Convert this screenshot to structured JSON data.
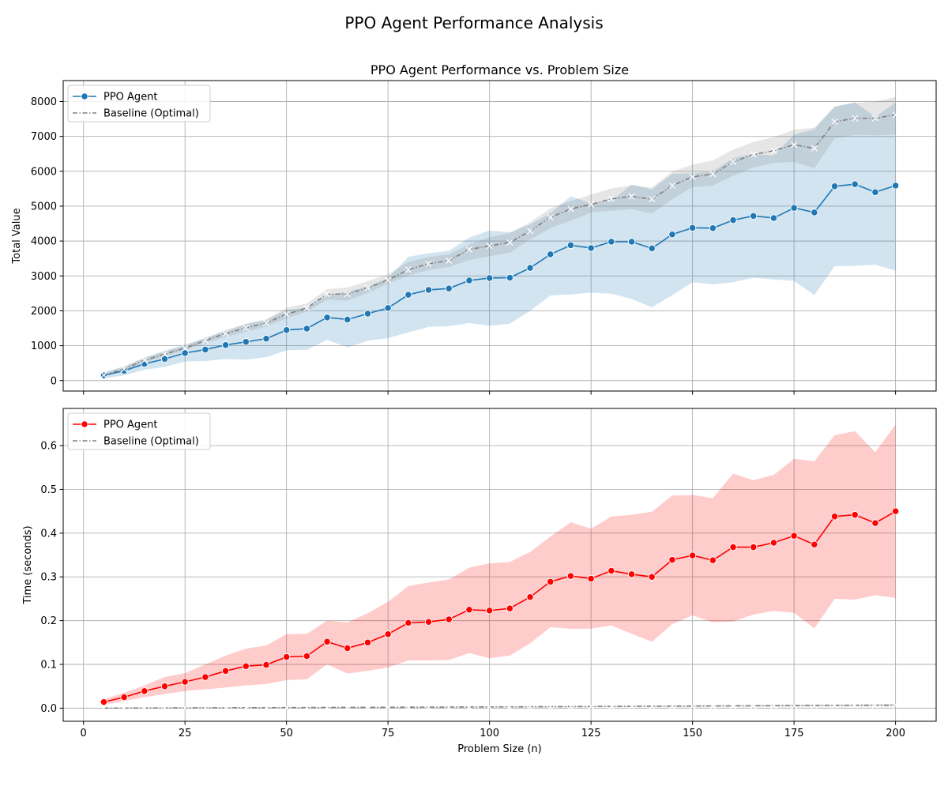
{
  "figure": {
    "suptitle": "PPO Agent Performance Analysis"
  },
  "chart_data": [
    {
      "type": "line",
      "title": "PPO Agent Performance vs. Problem Size",
      "xlabel": "",
      "ylabel": "Total Value",
      "xlim": [
        -5,
        210
      ],
      "ylim": [
        -300,
        8600
      ],
      "xticks": [
        0,
        25,
        50,
        75,
        100,
        125,
        150,
        175,
        200
      ],
      "xtick_labels_visible": false,
      "yticks": [
        0,
        1000,
        2000,
        3000,
        4000,
        5000,
        6000,
        7000,
        8000
      ],
      "grid": true,
      "legend_position": "upper-left",
      "x": [
        5,
        10,
        15,
        20,
        25,
        30,
        35,
        40,
        45,
        50,
        55,
        60,
        65,
        70,
        75,
        80,
        85,
        90,
        95,
        100,
        105,
        110,
        115,
        120,
        125,
        130,
        135,
        140,
        145,
        150,
        155,
        160,
        165,
        170,
        175,
        180,
        185,
        190,
        195,
        200
      ],
      "series": [
        {
          "name": "PPO Agent",
          "color": "#1f77b4",
          "band_color": "#1f77b4",
          "marker": "circle",
          "line_style": "solid",
          "values": [
            150,
            280,
            480,
            620,
            790,
            890,
            1020,
            1110,
            1200,
            1450,
            1490,
            1810,
            1750,
            1920,
            2080,
            2460,
            2600,
            2640,
            2870,
            2940,
            2950,
            3230,
            3620,
            3880,
            3800,
            3980,
            3980,
            3790,
            4190,
            4380,
            4370,
            4600,
            4720,
            4660,
            4950,
            4820,
            5570,
            5630,
            5400,
            5590
          ],
          "lower": [
            60,
            150,
            310,
            390,
            550,
            560,
            620,
            600,
            670,
            870,
            880,
            1170,
            950,
            1140,
            1220,
            1380,
            1540,
            1560,
            1650,
            1570,
            1630,
            2000,
            2440,
            2470,
            2520,
            2490,
            2340,
            2100,
            2450,
            2820,
            2760,
            2820,
            2950,
            2900,
            2860,
            2450,
            3280,
            3290,
            3320,
            3150
          ],
          "upper": [
            240,
            410,
            650,
            850,
            1030,
            1220,
            1420,
            1620,
            1730,
            2030,
            2090,
            2450,
            2550,
            2700,
            2940,
            3550,
            3650,
            3720,
            4100,
            4300,
            4250,
            4470,
            4800,
            5280,
            5080,
            5150,
            5620,
            5480,
            5930,
            5940,
            5990,
            6380,
            6490,
            6460,
            7050,
            7200,
            7850,
            7980,
            7560,
            7970
          ]
        },
        {
          "name": "Baseline (Optimal)",
          "color": "#808080",
          "band_color": "#808080",
          "marker": "x",
          "line_style": "dashdot",
          "values": [
            160,
            330,
            580,
            760,
            930,
            1150,
            1350,
            1510,
            1650,
            1900,
            2080,
            2480,
            2480,
            2660,
            2880,
            3180,
            3350,
            3440,
            3760,
            3860,
            3960,
            4290,
            4680,
            4920,
            5050,
            5210,
            5280,
            5200,
            5590,
            5840,
            5920,
            6270,
            6480,
            6590,
            6760,
            6660,
            7420,
            7520,
            7520,
            7620
          ],
          "lower": [
            120,
            290,
            520,
            690,
            870,
            1070,
            1250,
            1400,
            1550,
            1780,
            1980,
            2320,
            2290,
            2510,
            2780,
            3010,
            3170,
            3260,
            3460,
            3560,
            3670,
            4040,
            4370,
            4580,
            4820,
            4870,
            4920,
            4790,
            5200,
            5550,
            5590,
            5870,
            6110,
            6240,
            6270,
            6090,
            6940,
            7050,
            7030,
            7060
          ],
          "upper": [
            210,
            390,
            660,
            840,
            1000,
            1230,
            1440,
            1630,
            1760,
            2090,
            2210,
            2620,
            2670,
            2850,
            3050,
            3400,
            3540,
            3620,
            3900,
            4110,
            4230,
            4540,
            4940,
            5150,
            5330,
            5510,
            5600,
            5530,
            5990,
            6190,
            6310,
            6620,
            6840,
            6980,
            7190,
            7250,
            7860,
            7960,
            8000,
            8130
          ]
        }
      ]
    },
    {
      "type": "line",
      "title": "",
      "xlabel": "Problem Size (n)",
      "ylabel": "Time (seconds)",
      "xlim": [
        -5,
        210
      ],
      "ylim": [
        -0.03,
        0.685
      ],
      "xticks": [
        0,
        25,
        50,
        75,
        100,
        125,
        150,
        175,
        200
      ],
      "yticks": [
        0.0,
        0.1,
        0.2,
        0.3,
        0.4,
        0.5,
        0.6
      ],
      "ytick_labels": [
        "0.0",
        "0.1",
        "0.2",
        "0.3",
        "0.4",
        "0.5",
        "0.6"
      ],
      "grid": true,
      "legend_position": "upper-left",
      "x": [
        5,
        10,
        15,
        20,
        25,
        30,
        35,
        40,
        45,
        50,
        55,
        60,
        65,
        70,
        75,
        80,
        85,
        90,
        95,
        100,
        105,
        110,
        115,
        120,
        125,
        130,
        135,
        140,
        145,
        150,
        155,
        160,
        165,
        170,
        175,
        180,
        185,
        190,
        195,
        200
      ],
      "series": [
        {
          "name": "PPO Agent",
          "color": "#ff0000",
          "band_color": "#ff0000",
          "marker": "circle",
          "line_style": "solid",
          "values": [
            0.014,
            0.025,
            0.039,
            0.05,
            0.06,
            0.071,
            0.085,
            0.096,
            0.099,
            0.117,
            0.119,
            0.152,
            0.137,
            0.15,
            0.169,
            0.195,
            0.197,
            0.203,
            0.225,
            0.223,
            0.228,
            0.254,
            0.289,
            0.302,
            0.296,
            0.314,
            0.306,
            0.3,
            0.339,
            0.349,
            0.338,
            0.368,
            0.368,
            0.378,
            0.394,
            0.374,
            0.438,
            0.442,
            0.423,
            0.45
          ],
          "lower": [
            0.008,
            0.016,
            0.025,
            0.032,
            0.039,
            0.043,
            0.047,
            0.052,
            0.055,
            0.064,
            0.066,
            0.1,
            0.079,
            0.085,
            0.093,
            0.109,
            0.109,
            0.11,
            0.126,
            0.114,
            0.12,
            0.148,
            0.185,
            0.181,
            0.182,
            0.189,
            0.17,
            0.152,
            0.192,
            0.212,
            0.196,
            0.198,
            0.214,
            0.222,
            0.218,
            0.182,
            0.25,
            0.248,
            0.258,
            0.252
          ],
          "upper": [
            0.02,
            0.035,
            0.052,
            0.071,
            0.08,
            0.1,
            0.12,
            0.136,
            0.143,
            0.169,
            0.17,
            0.2,
            0.196,
            0.217,
            0.243,
            0.279,
            0.287,
            0.294,
            0.321,
            0.331,
            0.334,
            0.357,
            0.392,
            0.425,
            0.41,
            0.438,
            0.442,
            0.449,
            0.486,
            0.487,
            0.48,
            0.536,
            0.521,
            0.533,
            0.57,
            0.564,
            0.624,
            0.633,
            0.585,
            0.648
          ]
        },
        {
          "name": "Baseline (Optimal)",
          "color": "#808080",
          "band_color": "#808080",
          "marker": "x",
          "line_style": "dashdot",
          "values": [
            0.0001,
            0.0002,
            0.0004,
            0.0005,
            0.0006,
            0.0008,
            0.0009,
            0.001,
            0.0011,
            0.0012,
            0.0014,
            0.0016,
            0.0017,
            0.0018,
            0.002,
            0.0022,
            0.0023,
            0.0025,
            0.0027,
            0.0029,
            0.003,
            0.0032,
            0.0034,
            0.0036,
            0.0038,
            0.004,
            0.0042,
            0.0044,
            0.0046,
            0.0048,
            0.005,
            0.0052,
            0.0054,
            0.0056,
            0.0058,
            0.006,
            0.0062,
            0.0064,
            0.0066,
            0.0068
          ],
          "lower": [
            0.0,
            0.0,
            0.0002,
            0.0003,
            0.0004,
            0.0005,
            0.0006,
            0.0007,
            0.0008,
            0.0009,
            0.001,
            0.0011,
            0.0012,
            0.0013,
            0.0014,
            0.0015,
            0.0016,
            0.0017,
            0.0018,
            0.0019,
            0.002,
            0.0021,
            0.0022,
            0.0023,
            0.0024,
            0.0025,
            0.0026,
            0.0027,
            0.0028,
            0.0029,
            0.003,
            0.0031,
            0.0032,
            0.0033,
            0.0034,
            0.0035,
            0.0036,
            0.0037,
            0.0038,
            0.0039
          ],
          "upper": [
            0.0003,
            0.0005,
            0.0007,
            0.0008,
            0.0009,
            0.0011,
            0.0012,
            0.0014,
            0.0015,
            0.0016,
            0.0018,
            0.0021,
            0.0022,
            0.0024,
            0.0026,
            0.0029,
            0.003,
            0.0033,
            0.0036,
            0.0039,
            0.004,
            0.0043,
            0.0046,
            0.0049,
            0.0052,
            0.0055,
            0.0058,
            0.0061,
            0.0064,
            0.0067,
            0.007,
            0.0073,
            0.0076,
            0.0079,
            0.0082,
            0.0085,
            0.0088,
            0.0091,
            0.0094,
            0.0097
          ]
        }
      ]
    }
  ]
}
